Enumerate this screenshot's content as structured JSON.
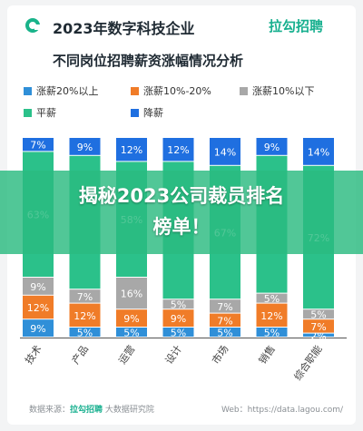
{
  "header": {
    "title": "2023年数字科技企业",
    "subtitle": "不同岗位招聘薪资涨幅情况分析",
    "brand": "拉勾招聘"
  },
  "banner": {
    "line1": "揭秘2023公司裁员排名",
    "line2": "榜单！"
  },
  "footer": {
    "source_label": "数据来源：",
    "source_brand": "拉勾招聘",
    "source_rest": "大数据研究院",
    "web": "Web：https://data.lagou.com/"
  },
  "colors": {
    "up20": "#2f8fd8",
    "up10_20": "#f07c28",
    "up10": "#a8a8a8",
    "flat": "#2bc18a",
    "down": "#1f6fe0"
  },
  "chart_data": {
    "type": "bar",
    "stacked": true,
    "percent": true,
    "categories": [
      "技术",
      "产品",
      "运营",
      "设计",
      "市场",
      "销售",
      "综合职能"
    ],
    "series": [
      {
        "name": "涨薪20%以上",
        "color": "#2f8fd8",
        "values": [
          9,
          5,
          5,
          5,
          5,
          5,
          2
        ],
        "labels": [
          "9%",
          "5%",
          "5%",
          "5%",
          "5%",
          "5%",
          "2%"
        ]
      },
      {
        "name": "涨薪10%-20%",
        "color": "#f07c28",
        "values": [
          12,
          12,
          9,
          9,
          7,
          12,
          7
        ],
        "labels": [
          "12%",
          "12%",
          "9%",
          "9%",
          "7%",
          "12%",
          "7%"
        ]
      },
      {
        "name": "涨薪10%以下",
        "color": "#a8a8a8",
        "values": [
          9,
          7,
          16,
          5,
          7,
          5,
          5
        ],
        "labels": [
          "9%",
          "7%",
          "16%",
          "5%",
          "7%",
          "5%",
          "5%"
        ]
      },
      {
        "name": "平薪",
        "color": "#2bc18a",
        "values": [
          63,
          67,
          58,
          69,
          67,
          69,
          72
        ],
        "labels": [
          "63%",
          "",
          "58%",
          "",
          "67%",
          "",
          "72%"
        ]
      },
      {
        "name": "降薪",
        "color": "#1f6fe0",
        "values": [
          7,
          9,
          12,
          12,
          14,
          9,
          14
        ],
        "labels": [
          "7%",
          "9%",
          "12%",
          "12%",
          "14%",
          "9%",
          "14%"
        ]
      }
    ],
    "ylim": [
      0,
      100
    ]
  }
}
